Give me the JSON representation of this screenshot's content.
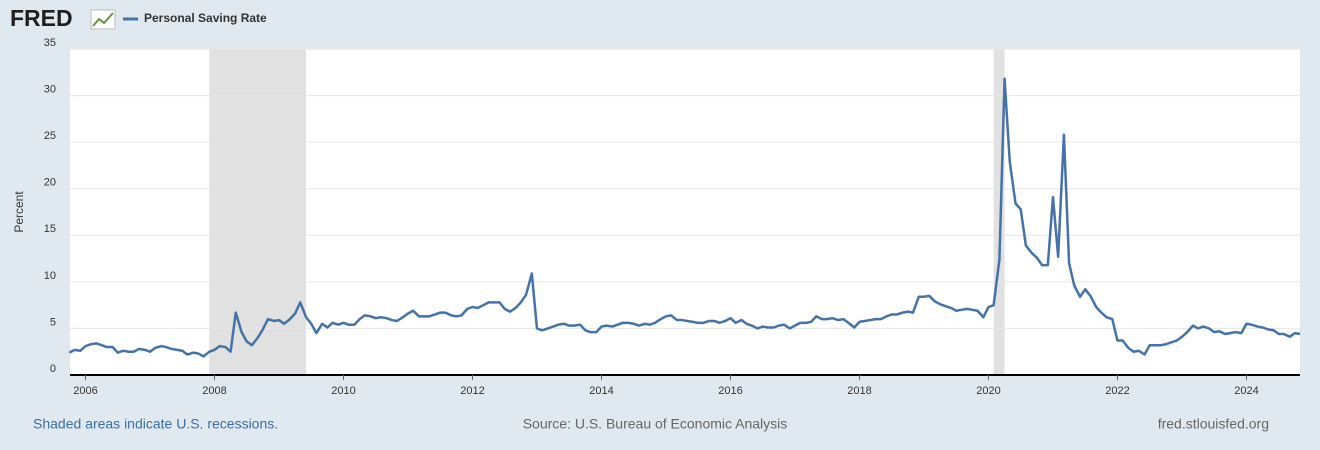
{
  "chart_data": {
    "type": "line",
    "logo": "FRED",
    "title": "Personal Saving Rate",
    "ylabel": "Percent",
    "note": "Shaded areas indicate U.S. recessions.",
    "source": "Source: U.S. Bureau of Economic Analysis",
    "site": "fred.stlouisfed.org",
    "xlim": [
      2005.76,
      2024.83
    ],
    "xticks": [
      2006,
      2008,
      2010,
      2012,
      2014,
      2016,
      2018,
      2020,
      2022,
      2024
    ],
    "ylim": [
      0,
      35
    ],
    "yticks": [
      0,
      5,
      10,
      15,
      20,
      25,
      30,
      35
    ],
    "grid": true,
    "recessions": [
      [
        2007.92,
        2009.42
      ],
      [
        2020.08,
        2020.25
      ]
    ],
    "recession_color": "#e1e1e1",
    "x": [
      2005.75,
      2005.83,
      2005.92,
      2006,
      2006.08,
      2006.17,
      2006.25,
      2006.33,
      2006.42,
      2006.5,
      2006.58,
      2006.67,
      2006.75,
      2006.83,
      2006.92,
      2007,
      2007.08,
      2007.17,
      2007.25,
      2007.33,
      2007.42,
      2007.5,
      2007.58,
      2007.67,
      2007.75,
      2007.83,
      2007.92,
      2008,
      2008.08,
      2008.17,
      2008.25,
      2008.33,
      2008.42,
      2008.5,
      2008.58,
      2008.67,
      2008.75,
      2008.83,
      2008.92,
      2009,
      2009.08,
      2009.17,
      2009.25,
      2009.33,
      2009.42,
      2009.5,
      2009.58,
      2009.67,
      2009.75,
      2009.83,
      2009.92,
      2010,
      2010.08,
      2010.17,
      2010.25,
      2010.33,
      2010.42,
      2010.5,
      2010.58,
      2010.67,
      2010.75,
      2010.83,
      2010.92,
      2011,
      2011.08,
      2011.17,
      2011.25,
      2011.33,
      2011.42,
      2011.5,
      2011.58,
      2011.67,
      2011.75,
      2011.83,
      2011.92,
      2012,
      2012.08,
      2012.17,
      2012.25,
      2012.33,
      2012.42,
      2012.5,
      2012.58,
      2012.67,
      2012.75,
      2012.83,
      2012.92,
      2013,
      2013.08,
      2013.17,
      2013.25,
      2013.33,
      2013.42,
      2013.5,
      2013.58,
      2013.67,
      2013.75,
      2013.83,
      2013.92,
      2014,
      2014.08,
      2014.17,
      2014.25,
      2014.33,
      2014.42,
      2014.5,
      2014.58,
      2014.67,
      2014.75,
      2014.83,
      2014.92,
      2015,
      2015.08,
      2015.17,
      2015.25,
      2015.33,
      2015.42,
      2015.5,
      2015.58,
      2015.67,
      2015.75,
      2015.83,
      2015.92,
      2016,
      2016.08,
      2016.17,
      2016.25,
      2016.33,
      2016.42,
      2016.5,
      2016.58,
      2016.67,
      2016.75,
      2016.83,
      2016.92,
      2017,
      2017.08,
      2017.17,
      2017.25,
      2017.33,
      2017.42,
      2017.5,
      2017.58,
      2017.67,
      2017.75,
      2017.83,
      2017.92,
      2018,
      2018.08,
      2018.17,
      2018.25,
      2018.33,
      2018.42,
      2018.5,
      2018.58,
      2018.67,
      2018.75,
      2018.83,
      2018.92,
      2019,
      2019.08,
      2019.17,
      2019.25,
      2019.33,
      2019.42,
      2019.5,
      2019.58,
      2019.67,
      2019.75,
      2019.83,
      2019.92,
      2020,
      2020.08,
      2020.17,
      2020.25,
      2020.33,
      2020.42,
      2020.5,
      2020.58,
      2020.67,
      2020.75,
      2020.83,
      2020.92,
      2021,
      2021.08,
      2021.17,
      2021.25,
      2021.33,
      2021.42,
      2021.5,
      2021.58,
      2021.67,
      2021.75,
      2021.83,
      2021.92,
      2022,
      2022.08,
      2022.17,
      2022.25,
      2022.33,
      2022.42,
      2022.5,
      2022.58,
      2022.67,
      2022.75,
      2022.83,
      2022.92,
      2023,
      2023.08,
      2023.17,
      2023.25,
      2023.33,
      2023.42,
      2023.5,
      2023.58,
      2023.67,
      2023.75,
      2023.83,
      2023.92,
      2024,
      2024.08,
      2024.17,
      2024.25,
      2024.33,
      2024.42,
      2024.5,
      2024.58,
      2024.67,
      2024.75,
      2024.83
    ],
    "series": [
      {
        "name": "Personal Saving Rate",
        "color": "#4572a7",
        "values": [
          2.4,
          2.7,
          2.6,
          3.1,
          3.3,
          3.4,
          3.2,
          3.0,
          3.0,
          2.4,
          2.6,
          2.5,
          2.5,
          2.8,
          2.7,
          2.5,
          2.9,
          3.1,
          3.0,
          2.8,
          2.7,
          2.6,
          2.2,
          2.4,
          2.3,
          2.0,
          2.5,
          2.7,
          3.1,
          3.0,
          2.5,
          6.7,
          4.6,
          3.6,
          3.2,
          4.0,
          4.9,
          6.0,
          5.8,
          5.9,
          5.5,
          6.0,
          6.6,
          7.8,
          6.2,
          5.5,
          4.5,
          5.5,
          5.1,
          5.6,
          5.4,
          5.6,
          5.4,
          5.4,
          6.0,
          6.4,
          6.3,
          6.1,
          6.2,
          6.1,
          5.9,
          5.8,
          6.2,
          6.6,
          6.9,
          6.3,
          6.3,
          6.3,
          6.5,
          6.7,
          6.7,
          6.4,
          6.3,
          6.4,
          7.1,
          7.3,
          7.2,
          7.5,
          7.8,
          7.8,
          7.8,
          7.1,
          6.8,
          7.2,
          7.8,
          8.6,
          10.9,
          5.0,
          4.8,
          5.0,
          5.2,
          5.4,
          5.5,
          5.3,
          5.3,
          5.4,
          4.8,
          4.6,
          4.6,
          5.2,
          5.3,
          5.2,
          5.4,
          5.6,
          5.6,
          5.5,
          5.3,
          5.5,
          5.4,
          5.6,
          6.0,
          6.3,
          6.4,
          5.9,
          5.9,
          5.8,
          5.7,
          5.6,
          5.6,
          5.8,
          5.8,
          5.6,
          5.8,
          6.1,
          5.6,
          5.9,
          5.5,
          5.3,
          5.0,
          5.2,
          5.1,
          5.1,
          5.3,
          5.4,
          5.0,
          5.3,
          5.6,
          5.6,
          5.7,
          6.3,
          6.0,
          6.0,
          6.1,
          5.9,
          6.0,
          5.6,
          5.1,
          5.7,
          5.8,
          5.9,
          6.0,
          6.0,
          6.3,
          6.5,
          6.5,
          6.7,
          6.8,
          6.7,
          8.4,
          8.4,
          8.5,
          7.9,
          7.6,
          7.4,
          7.2,
          6.9,
          7.0,
          7.1,
          7.0,
          6.9,
          6.2,
          7.3,
          7.5,
          12.4,
          31.8,
          22.9,
          18.4,
          17.8,
          13.9,
          13.1,
          12.6,
          11.8,
          11.8,
          19.1,
          12.7,
          25.8,
          12.0,
          9.6,
          8.4,
          9.2,
          8.5,
          7.3,
          6.7,
          6.2,
          6.0,
          3.7,
          3.7,
          2.9,
          2.5,
          2.6,
          2.2,
          3.2,
          3.2,
          3.2,
          3.3,
          3.5,
          3.7,
          4.1,
          4.6,
          5.3,
          5.0,
          5.2,
          5.0,
          4.6,
          4.7,
          4.4,
          4.5,
          4.6,
          4.5,
          5.5,
          5.4,
          5.2,
          5.1,
          4.9,
          4.8,
          4.4,
          4.4,
          4.1,
          4.5,
          4.4
        ]
      }
    ]
  }
}
